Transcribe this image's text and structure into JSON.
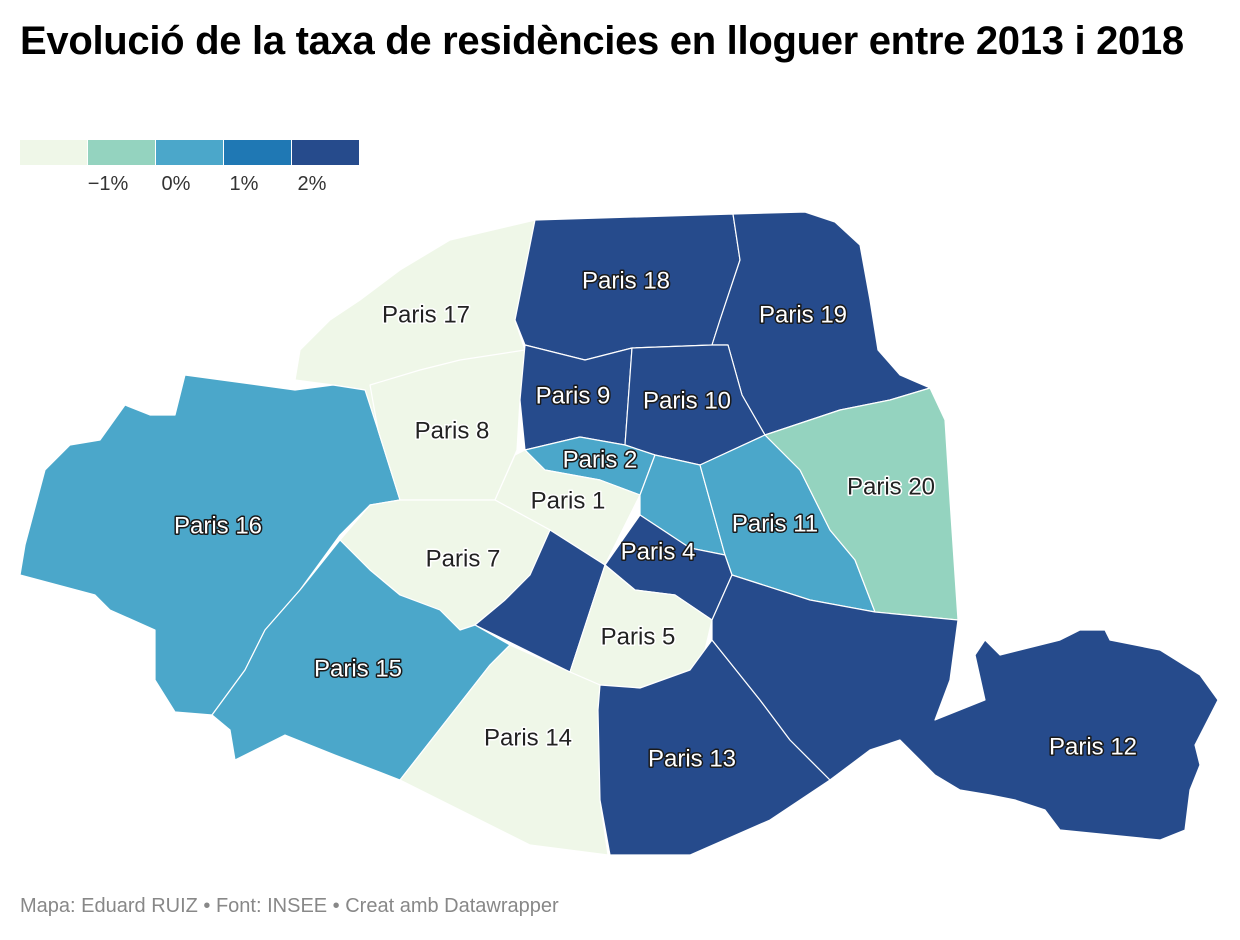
{
  "title": "Evolució de la taxa de residències en lloguer entre 2013 i 2018",
  "legend": {
    "colors": [
      "#eff7e8",
      "#94d3bf",
      "#4ba7ca",
      "#1f78b4",
      "#264b8c"
    ],
    "ticks": [
      "−1%",
      "0%",
      "1%",
      "2%"
    ]
  },
  "footer": "Mapa: Eduard RUIZ • Font: INSEE • Creat amb Datawrapper",
  "districts": [
    {
      "id": "17",
      "label": "Paris 17",
      "color": "#eff7e8"
    },
    {
      "id": "18",
      "label": "Paris 18",
      "color": "#264b8c"
    },
    {
      "id": "19",
      "label": "Paris 19",
      "color": "#264b8c"
    },
    {
      "id": "16",
      "label": "Paris 16",
      "color": "#4ba7ca"
    },
    {
      "id": "8",
      "label": "Paris 8",
      "color": "#eff7e8"
    },
    {
      "id": "9",
      "label": "Paris 9",
      "color": "#264b8c"
    },
    {
      "id": "10",
      "label": "Paris 10",
      "color": "#264b8c"
    },
    {
      "id": "2",
      "label": "Paris 2",
      "color": "#4ba7ca"
    },
    {
      "id": "1",
      "label": "Paris 1",
      "color": "#eff7e8"
    },
    {
      "id": "3",
      "label": "",
      "color": "#4ba7ca"
    },
    {
      "id": "11",
      "label": "Paris 11",
      "color": "#4ba7ca"
    },
    {
      "id": "20",
      "label": "Paris 20",
      "color": "#94d3bf"
    },
    {
      "id": "7",
      "label": "Paris 7",
      "color": "#eff7e8"
    },
    {
      "id": "4",
      "label": "Paris 4",
      "color": "#264b8c"
    },
    {
      "id": "6",
      "label": "",
      "color": "#264b8c"
    },
    {
      "id": "15",
      "label": "Paris 15",
      "color": "#4ba7ca"
    },
    {
      "id": "5",
      "label": "Paris 5",
      "color": "#eff7e8"
    },
    {
      "id": "14",
      "label": "Paris 14",
      "color": "#eff7e8"
    },
    {
      "id": "13",
      "label": "Paris 13",
      "color": "#264b8c"
    },
    {
      "id": "12",
      "label": "Paris 12",
      "color": "#264b8c"
    }
  ]
}
